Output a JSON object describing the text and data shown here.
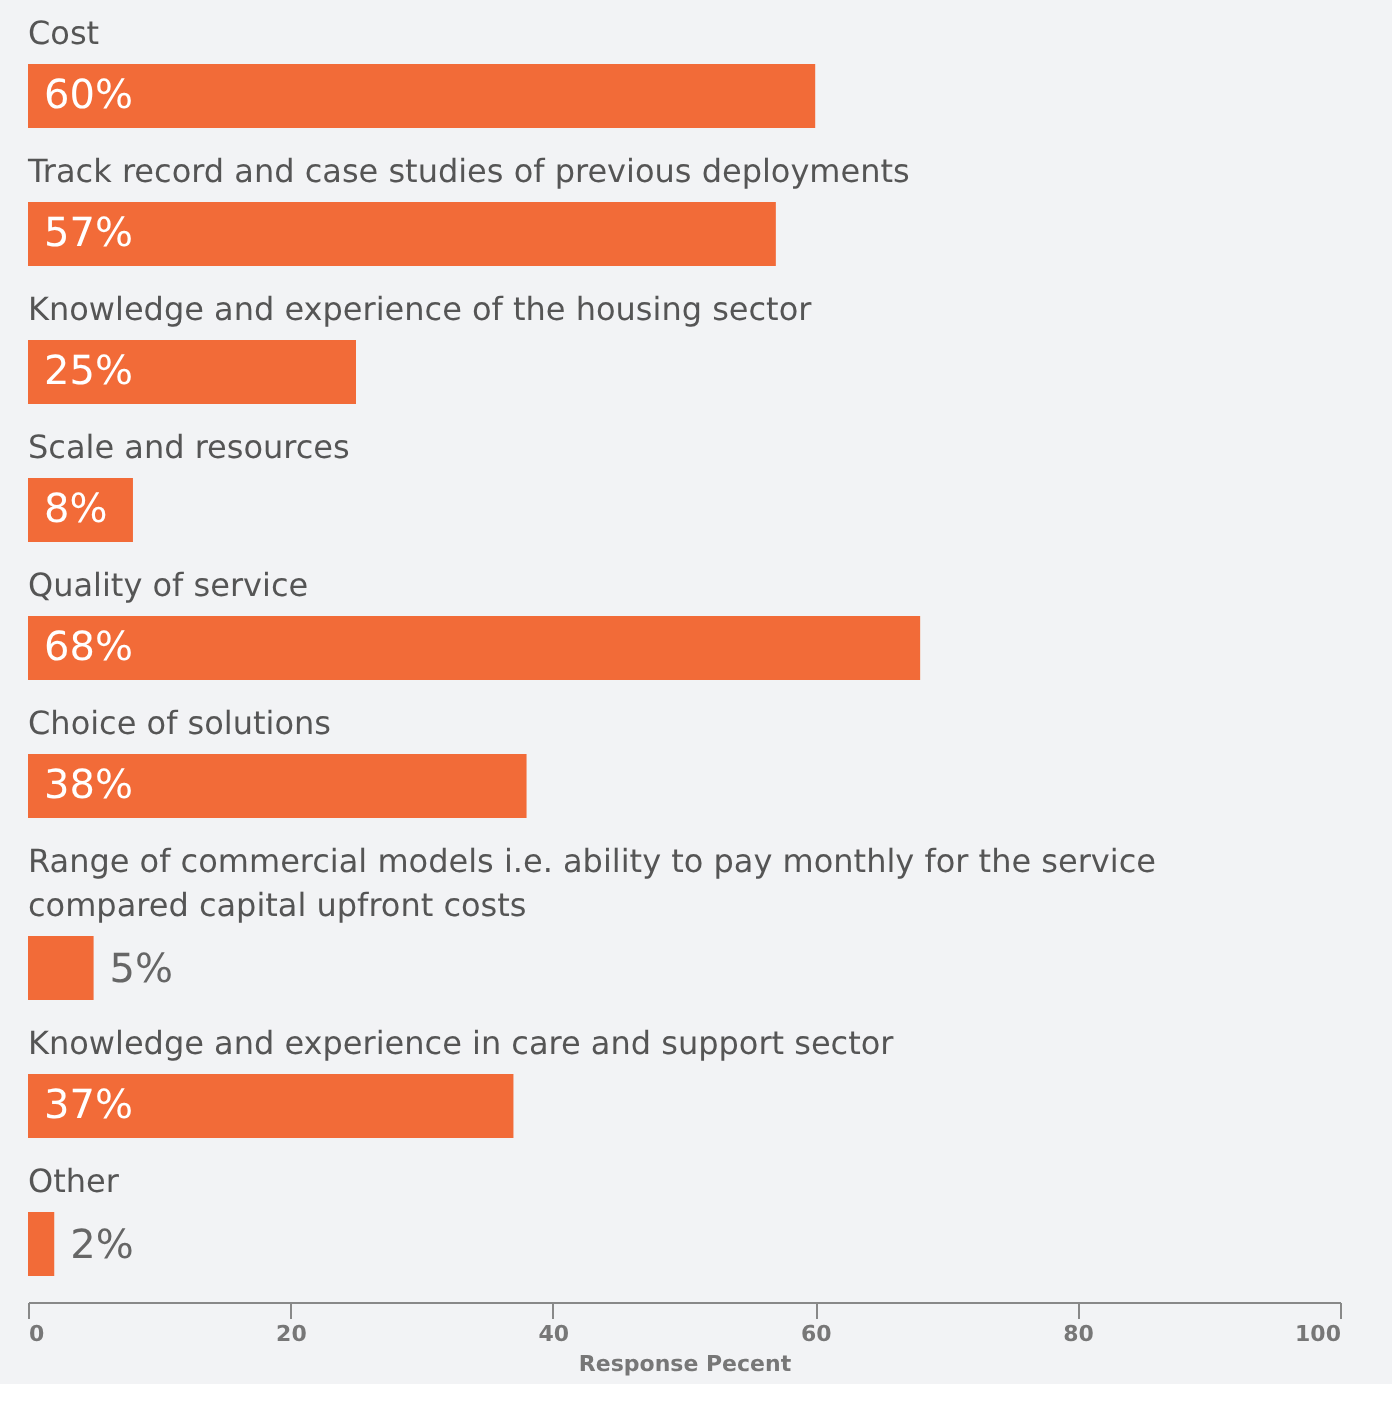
{
  "chart_data": {
    "type": "bar",
    "orientation": "horizontal",
    "xlabel": "Response Pecent",
    "categories": [
      "Cost",
      "Track record and case studies of previous deployments",
      "Knowledge and experience of the housing sector",
      "Scale and resources",
      "Quality of service",
      "Choice of solutions",
      "Range of commercial models i.e. ability to pay monthly for the service\ncompared capital upfront costs",
      "Knowledge and experience in care and support sector",
      "Other"
    ],
    "values": [
      60,
      57,
      25,
      8,
      68,
      38,
      5,
      37,
      2
    ],
    "value_labels": [
      "60%",
      "57%",
      "25%",
      "8%",
      "68%",
      "38%",
      "5%",
      "37%",
      "2%"
    ],
    "color": "#f26b38",
    "xlim": [
      0,
      100
    ],
    "xticks": [
      0,
      20,
      40,
      60,
      80,
      100
    ],
    "grid": false
  }
}
